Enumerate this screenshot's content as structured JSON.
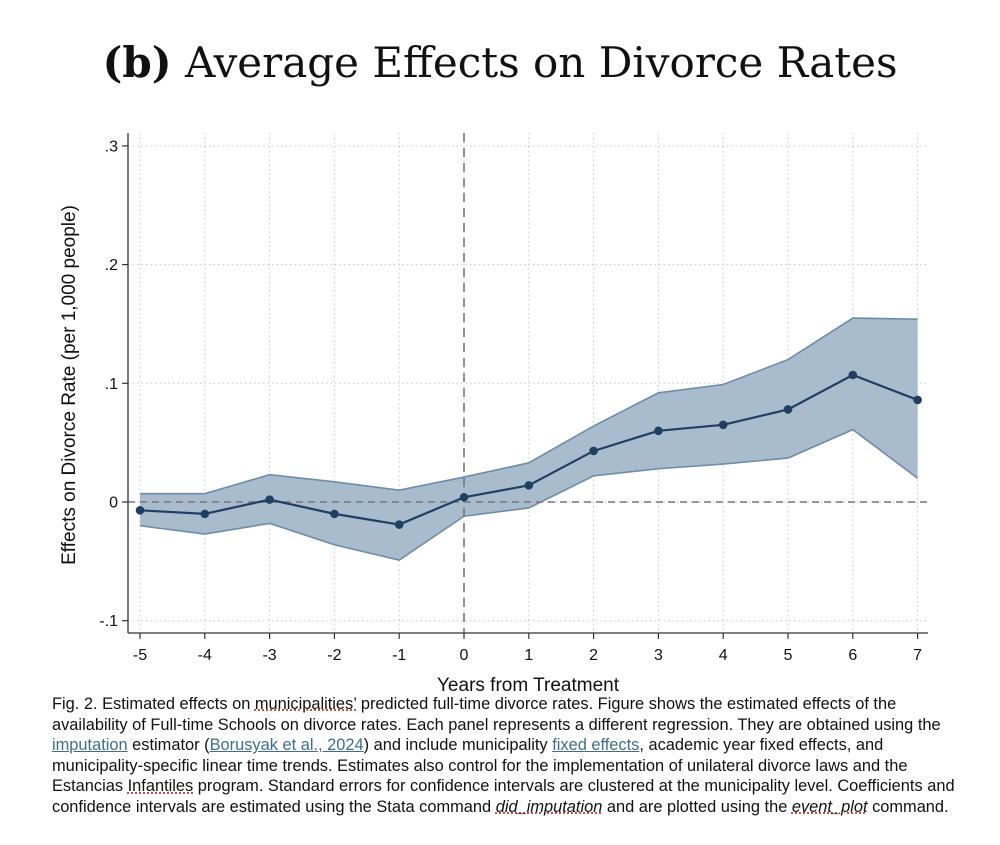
{
  "figure": {
    "panel_label": "(b)",
    "title": "Average Effects on Divorce Rates"
  },
  "chart_data": {
    "type": "line",
    "title": "Average Effects on Divorce Rates",
    "xlabel": "Years from Treatment",
    "ylabel": "Effects on Divorce Rate (per 1,000 people)",
    "x": [
      -5,
      -4,
      -3,
      -2,
      -1,
      0,
      1,
      2,
      3,
      4,
      5,
      6,
      7
    ],
    "x_tick_labels": [
      "-5",
      "-4",
      "-3",
      "-2",
      "-1",
      "0",
      "1",
      "2",
      "3",
      "4",
      "5",
      "6",
      "7"
    ],
    "y_ticks": [
      -0.1,
      0,
      0.1,
      0.2,
      0.3
    ],
    "y_tick_labels": [
      "-.1",
      "0",
      ".1",
      ".2",
      ".3"
    ],
    "xlim": [
      -5.2,
      7.2
    ],
    "ylim": [
      -0.11,
      0.31
    ],
    "grid": true,
    "reference_lines": {
      "x": 0,
      "y": 0
    },
    "series": [
      {
        "name": "Estimate",
        "values": [
          -0.007,
          -0.01,
          0.002,
          -0.01,
          -0.019,
          0.004,
          0.014,
          0.043,
          0.06,
          0.065,
          0.078,
          0.107,
          0.086
        ],
        "ci_lower": [
          -0.02,
          -0.027,
          -0.018,
          -0.036,
          -0.049,
          -0.012,
          -0.005,
          0.022,
          0.028,
          0.032,
          0.037,
          0.061,
          0.02
        ],
        "ci_upper": [
          0.007,
          0.007,
          0.023,
          0.017,
          0.01,
          0.021,
          0.033,
          0.064,
          0.092,
          0.099,
          0.12,
          0.155,
          0.154
        ]
      }
    ],
    "colors": {
      "line": "#1f3f63",
      "band_fill": "#a9bccd",
      "band_edge": "#6e8ca8",
      "grid": "#c8c8c8",
      "reference": "#777777"
    }
  },
  "caption": {
    "fig_label": "Fig. 2.",
    "t1": " Estimated effects on ",
    "municipalities": "municipalities’",
    "t2": " predicted full-time divorce rates. Figure shows the estimated effects of the availability of Full-time Schools on divorce rates. Each panel represents a different regression. They are obtained using the ",
    "imputation": "imputation",
    "t3": " estimator (",
    "borusyak": "Borusyak et al., 2024",
    "t4": ") and include municipality ",
    "fixed_effects": "fixed effects",
    "t5": ", academic year fixed effects, and municipality-specific linear time trends. Estimates also control for the implementation of unilateral divorce laws and the Estancias ",
    "infantiles": "Infantiles",
    "t6": " program. Standard errors for confidence intervals are clustered at the municipality level. Coefficients and confidence intervals are estimated using the Stata command ",
    "did_imputation": "did_imputation",
    "t7": " and are plotted using the ",
    "event_plot": "event_plot",
    "t8": " command."
  }
}
